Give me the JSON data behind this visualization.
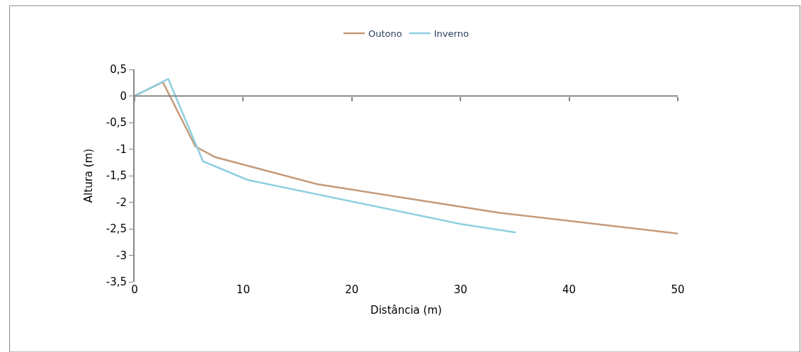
{
  "chart_data": {
    "type": "line",
    "xlabel": "Distância (m)",
    "ylabel": "Altura (m)",
    "series": [
      {
        "name": "Outono",
        "color": "#c49a7a",
        "x": [
          0,
          2.6,
          5.6,
          7.4,
          16.8,
          33.6,
          50
        ],
        "values": [
          0,
          0.26,
          -0.95,
          -1.15,
          -1.66,
          -2.2,
          -2.59
        ]
      },
      {
        "name": "Inverno",
        "color": "#8ecfe0",
        "x": [
          0,
          3.1,
          6.3,
          10.4,
          30,
          35.1
        ],
        "values": [
          0,
          0.32,
          -1.23,
          -1.58,
          -2.41,
          -2.57
        ]
      }
    ],
    "xlim": [
      0,
      50
    ],
    "xticks": [
      0,
      10,
      20,
      30,
      40,
      50
    ],
    "ylim": [
      -3.5,
      0.5
    ],
    "yticks": [
      {
        "value": 0.5,
        "label": "0,5"
      },
      0,
      {
        "value": -0.5,
        "label": "-0,5"
      },
      -1,
      {
        "value": -1.5,
        "label": "-1,5"
      },
      -2,
      {
        "value": -2.5,
        "label": "-2,5"
      },
      -3,
      {
        "value": -3.5,
        "label": "-3,5"
      }
    ],
    "ref_lines": [
      {
        "axis": "y",
        "value": 0,
        "color": "#868686"
      }
    ],
    "legend": "top",
    "marker": "none",
    "line_style": "solid"
  }
}
